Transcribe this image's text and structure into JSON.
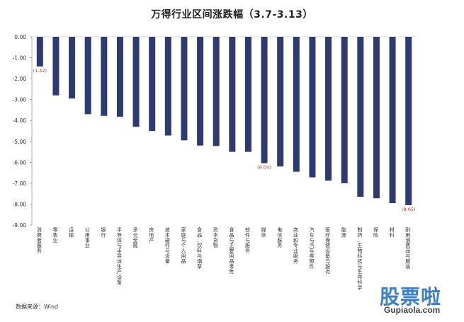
{
  "chart_data": {
    "type": "bar",
    "title": "万得行业区间涨跌幅（3.7-3.13）",
    "categories": [
      "消费者服务",
      "零售业",
      "运输",
      "公用事业",
      "银行",
      "半导体与半导体生产设备",
      "多元金融",
      "房地产",
      "技术硬件与设备",
      "家庭与个人用品",
      "食品、饮料与烟草",
      "资本货物",
      "食品与主要用品零售",
      "软件与服务",
      "媒体",
      "电信服务",
      "商业和专业服务",
      "汽车与汽车零部件",
      "医疗保健设备与服务",
      "能源",
      "制药、生物科技与生命科学",
      "保险",
      "材料",
      "耐用消费品与服装"
    ],
    "values": [
      -1.42,
      -2.8,
      -2.95,
      -3.7,
      -3.78,
      -3.82,
      -4.3,
      -4.5,
      -4.72,
      -4.95,
      -5.2,
      -5.22,
      -5.5,
      -5.5,
      -6.04,
      -6.2,
      -6.45,
      -6.72,
      -6.88,
      -7.0,
      -7.65,
      -7.72,
      -7.95,
      -8.05
    ],
    "data_labels": [
      {
        "index": 0,
        "text": "(1.42)"
      },
      {
        "index": 14,
        "text": "(6.04)"
      },
      {
        "index": 23,
        "text": "(8.05)"
      }
    ],
    "ylim": [
      -9.0,
      0.0
    ],
    "yticks": [
      "0.00",
      "-1.00",
      "-2.00",
      "-3.00",
      "-4.00",
      "-5.00",
      "-6.00",
      "-7.00",
      "-8.00",
      "-9.00"
    ],
    "grid": false,
    "bar_color": "#2e3b72",
    "label_color": "#c0392b"
  },
  "footer": {
    "source": "数据来源：Wind"
  },
  "watermark": {
    "cn": "股票啦",
    "site": "Gupiaola.com"
  }
}
